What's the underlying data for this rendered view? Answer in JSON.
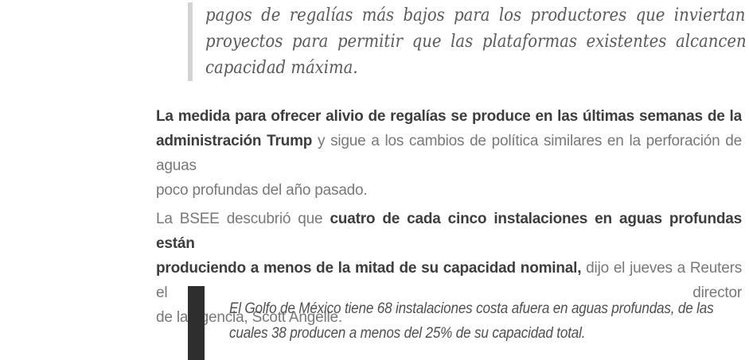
{
  "page": {
    "background_color": "#ffffff",
    "language": "es"
  },
  "top_quote": {
    "bar_color": "#d3d3d3",
    "text_color": "#5a5a5a",
    "lines": [
      "pagos de regalías más bajos para los productores que inviertan en",
      "proyectos para permitir que las plataformas existentes alcancen su",
      "capacidad máxima."
    ]
  },
  "paragraph1": {
    "lines": [
      {
        "pre": "",
        "bold": "La medida para ofrecer alivio de regalías se produce en las últimas semanas de la",
        "post": ""
      },
      {
        "pre": "",
        "bold": "administración Trump",
        "post": " y sigue a los cambios de política similares en la perforación de aguas"
      },
      {
        "pre": "",
        "bold": "",
        "post": "poco profundas del año pasado."
      }
    ]
  },
  "paragraph2": {
    "lines": [
      {
        "pre": "La BSEE descubrió que ",
        "bold": "cuatro de cada cinco instalaciones en aguas profundas están",
        "post": ""
      },
      {
        "pre": "",
        "bold": "produciendo a menos de la mitad de su capacidad nominal,",
        "post": " dijo el jueves a Reuters el director"
      },
      {
        "pre": "de la agencia, Scott Angelle.",
        "bold": "",
        "post": ""
      }
    ]
  },
  "bottom_quote": {
    "bar_color": "#2e2e2e",
    "text_color": "#4f4f4f",
    "lines": [
      "El Golfo de México tiene 68 instalaciones costa afuera en aguas profundas, de las",
      "cuales 38 producen a menos del 25% de su capacidad total."
    ]
  },
  "colors": {
    "text_regular": "#787878",
    "text_bold": "#3d3d3d"
  }
}
